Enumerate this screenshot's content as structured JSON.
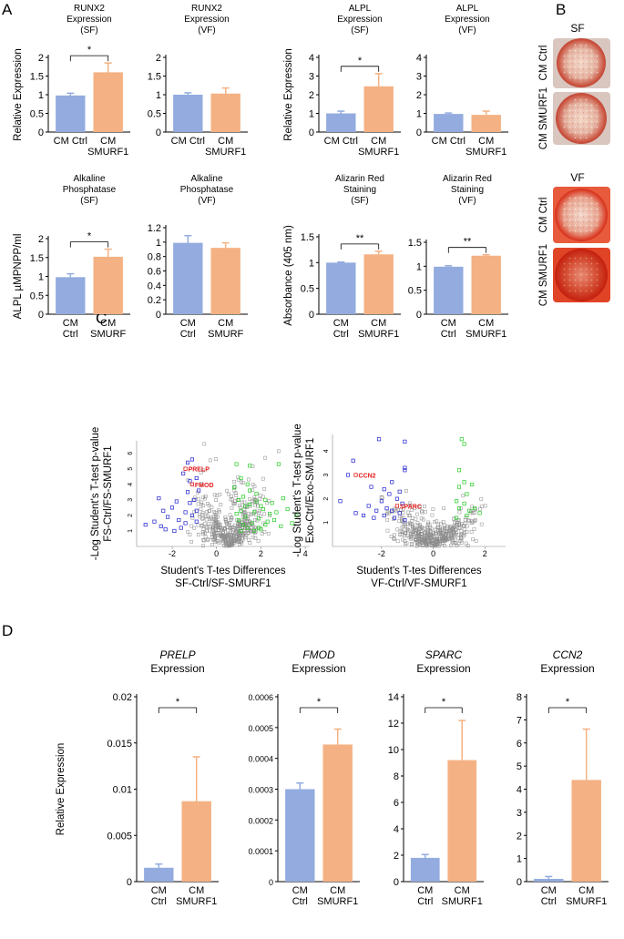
{
  "colors": {
    "ctrl": "#93abde",
    "smurf": "#f4b183",
    "grey": "#8c8c8c",
    "blue": "#1f1fd0",
    "green": "#22cc22",
    "red": "#e41a1c"
  },
  "panels": {
    "A": {
      "letter": "A"
    },
    "B": {
      "letter": "B",
      "groups": [
        {
          "title": "SF",
          "wells": [
            {
              "label": "CM Ctrl"
            },
            {
              "label": "CM SMURF1"
            }
          ]
        },
        {
          "title": "VF",
          "wells": [
            {
              "label": "CM Ctrl"
            },
            {
              "label": "CM SMURF1"
            }
          ]
        }
      ]
    },
    "C": {
      "letter": "C"
    },
    "D": {
      "letter": "D"
    }
  },
  "chart_data": [
    {
      "id": "runx2-sf",
      "type": "bar",
      "title": [
        "RUNX2",
        "Expression",
        "(SF)"
      ],
      "ylabel": "Relative Expression",
      "ylim": [
        0,
        2
      ],
      "yticks": [
        "0",
        "0.5",
        "1",
        "1.5",
        "2"
      ],
      "categories": [
        [
          "CM Ctrl"
        ],
        [
          "CM",
          "SMURF1"
        ]
      ],
      "values": [
        0.98,
        1.6
      ],
      "errors": [
        0.06,
        0.25
      ],
      "sig": "*"
    },
    {
      "id": "runx2-vf",
      "type": "bar",
      "title": [
        "RUNX2",
        "Expression",
        "(VF)"
      ],
      "ylabel": "",
      "ylim": [
        0,
        2
      ],
      "yticks": [
        "0",
        "0.5",
        "1",
        "1.5",
        "2"
      ],
      "categories": [
        [
          "CM Ctrl"
        ],
        [
          "CM",
          "SMURF1"
        ]
      ],
      "values": [
        1.0,
        1.03
      ],
      "errors": [
        0.05,
        0.15
      ],
      "sig": ""
    },
    {
      "id": "alpl-sf",
      "type": "bar",
      "title": [
        "ALPL",
        "Expression",
        "(SF)"
      ],
      "ylabel": "Relative Expression",
      "ylim": [
        0,
        4
      ],
      "yticks": [
        "0",
        "1",
        "2",
        "3",
        "4"
      ],
      "categories": [
        [
          "CM Ctrl"
        ],
        [
          "CM",
          "SMURF1"
        ]
      ],
      "values": [
        1.0,
        2.45
      ],
      "errors": [
        0.12,
        0.68
      ],
      "sig": "*"
    },
    {
      "id": "alpl-vf",
      "type": "bar",
      "title": [
        "ALPL",
        "Expression",
        "(VF)"
      ],
      "ylabel": "",
      "ylim": [
        0,
        4
      ],
      "yticks": [
        "0",
        "1",
        "2",
        "3",
        "4"
      ],
      "categories": [
        [
          "CM Ctrl"
        ],
        [
          "CM",
          "SMURF1"
        ]
      ],
      "values": [
        0.97,
        0.92
      ],
      "errors": [
        0.05,
        0.2
      ],
      "sig": ""
    },
    {
      "id": "alp-sf",
      "type": "bar",
      "title": [
        "Alkaline",
        "Phosphatase",
        "(SF)"
      ],
      "ylabel": "ALPL µMPNPP/ml",
      "ylim": [
        0,
        2
      ],
      "yticks": [
        "0",
        "0.5",
        "1",
        "1.5",
        "2"
      ],
      "categories": [
        [
          "CM",
          "Ctrl"
        ],
        [
          "CM",
          "SMURF"
        ]
      ],
      "values": [
        0.98,
        1.52
      ],
      "errors": [
        0.09,
        0.2
      ],
      "sig": "*"
    },
    {
      "id": "alp-vf",
      "type": "bar",
      "title": [
        "Alkaline",
        "Phosphatase",
        "(VF)"
      ],
      "ylabel": "",
      "ylim": [
        0,
        1.2
      ],
      "yticks": [
        "0",
        "0.2",
        "0.4",
        "0.6",
        "0.8",
        "1",
        "1.2"
      ],
      "categories": [
        [
          "CM",
          "Ctrl"
        ],
        [
          "CM",
          "SMURF"
        ]
      ],
      "values": [
        0.99,
        0.92
      ],
      "errors": [
        0.1,
        0.07
      ],
      "sig": ""
    },
    {
      "id": "ars-sf",
      "type": "bar",
      "title": [
        "Alizarin Red",
        "Staining",
        "(SF)"
      ],
      "ylabel": "Absorbance (405 nm)",
      "ylim": [
        0,
        1.5
      ],
      "yticks": [
        "0",
        "0.5",
        "1",
        "1.5"
      ],
      "categories": [
        [
          "CM",
          "Ctrl"
        ],
        [
          "CM",
          "SMURF1"
        ]
      ],
      "values": [
        1.0,
        1.16
      ],
      "errors": [
        0.01,
        0.06
      ],
      "sig": "**"
    },
    {
      "id": "ars-vf",
      "type": "bar",
      "title": [
        "Alizarin Red",
        "Staining",
        "(VF)"
      ],
      "ylabel": "",
      "ylim": [
        0,
        1.5
      ],
      "yticks": [
        "0",
        "0.5",
        "1",
        "1.5"
      ],
      "categories": [
        [
          "CM",
          "Ctrl"
        ],
        [
          "CM",
          "SMURF1"
        ]
      ],
      "values": [
        0.99,
        1.22
      ],
      "errors": [
        0.02,
        0.02
      ],
      "sig": "**"
    },
    {
      "id": "volcano-sf",
      "type": "scatter",
      "xlabel": [
        "Student's T-tes Differences",
        "SF-Ctrl/SF-SMURF1"
      ],
      "ylabel": [
        "-Log Student's T-test p-value",
        "FS-Ctrl/FS-SMURF1"
      ],
      "xlim": [
        -3.6,
        4.2
      ],
      "ylim": [
        0,
        6.8
      ],
      "xticks": [
        "-2",
        "0",
        "2",
        "4"
      ],
      "xtickvals": [
        -2,
        0,
        2,
        4
      ],
      "yticks": [
        "1",
        "2",
        "3",
        "4",
        "5",
        "6"
      ],
      "ytickvals": [
        1,
        2,
        3,
        4,
        5,
        6
      ],
      "background_points": 420,
      "blue": [
        [
          -1.3,
          5.4
        ],
        [
          -1.1,
          5.6
        ],
        [
          -1.5,
          4.7
        ],
        [
          -1.2,
          4.2
        ],
        [
          -0.9,
          4.4
        ],
        [
          -0.8,
          3.6
        ],
        [
          -1.3,
          3.5
        ],
        [
          -1.0,
          3.0
        ],
        [
          -1.2,
          2.8
        ],
        [
          -0.9,
          2.3
        ],
        [
          -1.4,
          2.2
        ],
        [
          -2.4,
          2.3
        ],
        [
          -2.0,
          2.5
        ],
        [
          -2.2,
          1.9
        ],
        [
          -1.7,
          1.7
        ],
        [
          -2.8,
          1.6
        ],
        [
          -2.5,
          1.3
        ],
        [
          -1.6,
          1.2
        ],
        [
          -1.9,
          1.0
        ],
        [
          -1.1,
          2.0
        ],
        [
          -3.2,
          1.4
        ],
        [
          -2.6,
          3.1
        ],
        [
          -1.8,
          2.9
        ],
        [
          -0.9,
          1.6
        ],
        [
          -1.4,
          1.5
        ],
        [
          -2.3,
          1.1
        ]
      ],
      "green": [
        [
          0.9,
          5.3
        ],
        [
          1.5,
          5.2
        ],
        [
          2.8,
          5.3
        ],
        [
          1.1,
          4.4
        ],
        [
          1.4,
          4.0
        ],
        [
          0.8,
          3.8
        ],
        [
          1.8,
          3.4
        ],
        [
          2.2,
          3.0
        ],
        [
          1.2,
          3.2
        ],
        [
          1.5,
          2.7
        ],
        [
          2.0,
          2.6
        ],
        [
          1.1,
          2.3
        ],
        [
          1.7,
          2.2
        ],
        [
          2.4,
          2.1
        ],
        [
          1.3,
          1.9
        ],
        [
          1.9,
          1.8
        ],
        [
          2.6,
          1.7
        ],
        [
          1.0,
          1.7
        ],
        [
          1.6,
          1.5
        ],
        [
          2.2,
          1.4
        ],
        [
          2.9,
          1.3
        ],
        [
          1.4,
          1.2
        ],
        [
          2.0,
          1.1
        ],
        [
          1.1,
          1.0
        ],
        [
          1.7,
          1.0
        ],
        [
          3.2,
          2.4
        ],
        [
          3.6,
          2.0
        ],
        [
          2.5,
          2.8
        ],
        [
          3.0,
          3.1
        ],
        [
          1.9,
          1.2
        ],
        [
          1.2,
          1.4
        ],
        [
          2.3,
          1.6
        ],
        [
          3.4,
          1.5
        ],
        [
          1.5,
          3.6
        ],
        [
          2.1,
          2.4
        ],
        [
          0.9,
          2.1
        ],
        [
          1.3,
          2.6
        ],
        [
          2.7,
          2.2
        ],
        [
          1.8,
          2.9
        ],
        [
          1.0,
          3.0
        ]
      ],
      "labeled": [
        {
          "name": "PRELP",
          "x": -1.4,
          "y": 5.0
        },
        {
          "name": "FMOD",
          "x": -1.1,
          "y": 4.0
        }
      ]
    },
    {
      "id": "volcano-vf",
      "type": "scatter",
      "xlabel": [
        "Student's T-tes Differences",
        "VF-Ctrl/VF-SMURF1"
      ],
      "ylabel": [
        "-Log Student's T-test p-value",
        "Exo-Ctrl/Exo-SMURF1"
      ],
      "xlim": [
        -3.9,
        2.8
      ],
      "ylim": [
        0,
        4.7
      ],
      "xticks": [
        "-2",
        "0",
        "2"
      ],
      "xtickvals": [
        -2,
        0,
        2
      ],
      "yticks": [
        "1",
        "2",
        "3",
        "4"
      ],
      "ytickvals": [
        1,
        2,
        3,
        4
      ],
      "background_points": 420,
      "blue": [
        [
          -2.1,
          4.5
        ],
        [
          -1.1,
          4.4
        ],
        [
          -3.1,
          3.6
        ],
        [
          -1.1,
          3.3
        ],
        [
          -1.1,
          3.2
        ],
        [
          -3.3,
          3.0
        ],
        [
          -1.6,
          2.7
        ],
        [
          -2.4,
          2.5
        ],
        [
          -1.9,
          2.4
        ],
        [
          -1.3,
          2.3
        ],
        [
          -1.7,
          2.2
        ],
        [
          -1.4,
          2.0
        ],
        [
          -2.0,
          1.9
        ],
        [
          -1.2,
          1.8
        ],
        [
          -2.5,
          1.7
        ],
        [
          -1.8,
          1.6
        ],
        [
          -1.6,
          1.5
        ],
        [
          -2.2,
          1.5
        ],
        [
          -3.0,
          1.4
        ],
        [
          -2.7,
          1.3
        ],
        [
          -1.3,
          1.4
        ],
        [
          -1.9,
          1.3
        ],
        [
          -1.5,
          1.2
        ],
        [
          -1.1,
          1.1
        ],
        [
          -3.6,
          1.9
        ],
        [
          -2.3,
          1.2
        ]
      ],
      "green": [
        [
          1.1,
          4.5
        ],
        [
          1.2,
          4.3
        ],
        [
          1.0,
          3.2
        ],
        [
          1.2,
          2.7
        ],
        [
          1.0,
          2.5
        ],
        [
          1.5,
          2.6
        ],
        [
          1.3,
          2.2
        ],
        [
          0.9,
          1.9
        ],
        [
          1.2,
          1.8
        ],
        [
          1.6,
          1.6
        ],
        [
          1.4,
          1.5
        ],
        [
          1.0,
          1.6
        ],
        [
          1.8,
          1.4
        ],
        [
          1.3,
          1.3
        ],
        [
          0.9,
          1.2
        ]
      ],
      "labeled": [
        {
          "name": "CCN2",
          "x": -3.0,
          "y": 3.0
        },
        {
          "name": "SPARC",
          "x": -1.4,
          "y": 1.7
        }
      ]
    },
    {
      "id": "prelp",
      "type": "bar",
      "title": [
        "PRELP",
        "Expression"
      ],
      "italic_gene": true,
      "ylabel": "Relative Expression",
      "ylim": [
        0,
        0.02
      ],
      "yticks": [
        "0",
        "0.005",
        "0.01",
        "0.015",
        "0.02"
      ],
      "categories": [
        [
          "CM",
          "Ctrl"
        ],
        [
          "CM",
          "SMURF1"
        ]
      ],
      "values": [
        0.0015,
        0.0087
      ],
      "errors": [
        0.0004,
        0.0048
      ],
      "sig": "*"
    },
    {
      "id": "fmod",
      "type": "bar",
      "title": [
        "FMOD",
        "Expression"
      ],
      "italic_gene": true,
      "ylabel": "",
      "ylim": [
        0,
        0.0006
      ],
      "yticks": [
        "0",
        "0.0001",
        "0.0002",
        "0.0003",
        "0.0004",
        "0.0005",
        "0.0006"
      ],
      "categories": [
        [
          "CM",
          "Ctrl"
        ],
        [
          "CM",
          "SMURF1"
        ]
      ],
      "values": [
        0.0003,
        0.000445
      ],
      "errors": [
        2e-05,
        5e-05
      ],
      "sig": "*"
    },
    {
      "id": "sparc",
      "type": "bar",
      "title": [
        "SPARC",
        "Expression"
      ],
      "italic_gene": true,
      "ylabel": "",
      "ylim": [
        0,
        14
      ],
      "yticks": [
        "0",
        "2",
        "4",
        "6",
        "8",
        "10",
        "12",
        "14"
      ],
      "categories": [
        [
          "CM",
          "Ctrl"
        ],
        [
          "CM",
          "SMURF1"
        ]
      ],
      "values": [
        1.8,
        9.2
      ],
      "errors": [
        0.25,
        3.0
      ],
      "sig": "*"
    },
    {
      "id": "ccn2",
      "type": "bar",
      "title": [
        "CCN2",
        "Expression"
      ],
      "italic_gene": true,
      "ylabel": "",
      "ylim": [
        0,
        8
      ],
      "yticks": [
        "0",
        "1",
        "2",
        "3",
        "4",
        "5",
        "6",
        "7",
        "8"
      ],
      "categories": [
        [
          "CM",
          "Ctrl"
        ],
        [
          "CM",
          "SMURF1"
        ]
      ],
      "values": [
        0.12,
        4.4
      ],
      "errors": [
        0.1,
        2.2
      ],
      "sig": "*"
    }
  ]
}
